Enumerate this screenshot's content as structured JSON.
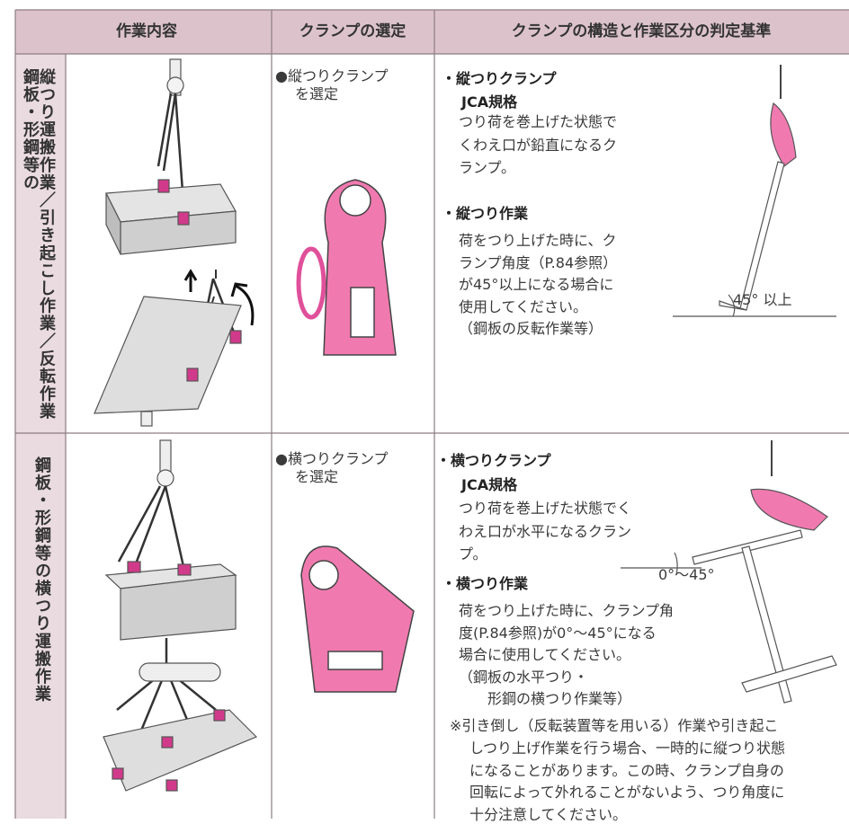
{
  "header": {
    "columns": [
      "作業内容",
      "クランプの選定",
      "クランプの構造と作業区分の判定基準"
    ]
  },
  "rows": [
    {
      "label": [
        "鋼板・形鋼等の",
        "縦つり運搬作業／引き起こし作業／反転作業"
      ],
      "selection": [
        "●縦つりクランプ",
        "を選定"
      ],
      "clamp_type": {
        "title": "・縦つりクランプ",
        "standard": "JCA規格",
        "description": [
          "つり荷を巻上げた状態で",
          "くわえ口が鉛直になるク",
          "ランプ。"
        ]
      },
      "work": {
        "title": "・縦つり作業",
        "description": [
          "荷をつり上げた時に、ク",
          "ランプ角度（P.84参照）",
          "が45°以上になる場合に",
          "使用してください。",
          "（鋼板の反転作業等）"
        ]
      },
      "diagram_label": "45° 以上"
    },
    {
      "label": [
        "鋼板・形鋼等の横つり運搬作業"
      ],
      "selection": [
        "●横つりクランプ",
        "を選定"
      ],
      "clamp_type": {
        "title": "・横つりクランプ",
        "standard": "JCA規格",
        "description": [
          "つり荷を巻上げた状態でく",
          "わえ口が水平になるクラン",
          "プ。"
        ]
      },
      "work": {
        "title": "・横つり作業",
        "description": [
          "荷をつり上げた時に、クランプ角",
          "度(P.84参照)が0°～45°になる",
          "場合に使用してください。",
          "（鋼板の水平つり・",
          "　　形鋼の横つり作業等）"
        ]
      },
      "note": [
        "※引き倒し（反転装置等を用いる）作業や引き起こ",
        "しつり上げ作業を行う場合、一時的に縦つり状態",
        "になることがあります。この時、クランプ自身の",
        "回転によって外れることがないよう、つり角度に",
        "十分注意してください。"
      ],
      "diagram_label": "0°～45°"
    }
  ]
}
